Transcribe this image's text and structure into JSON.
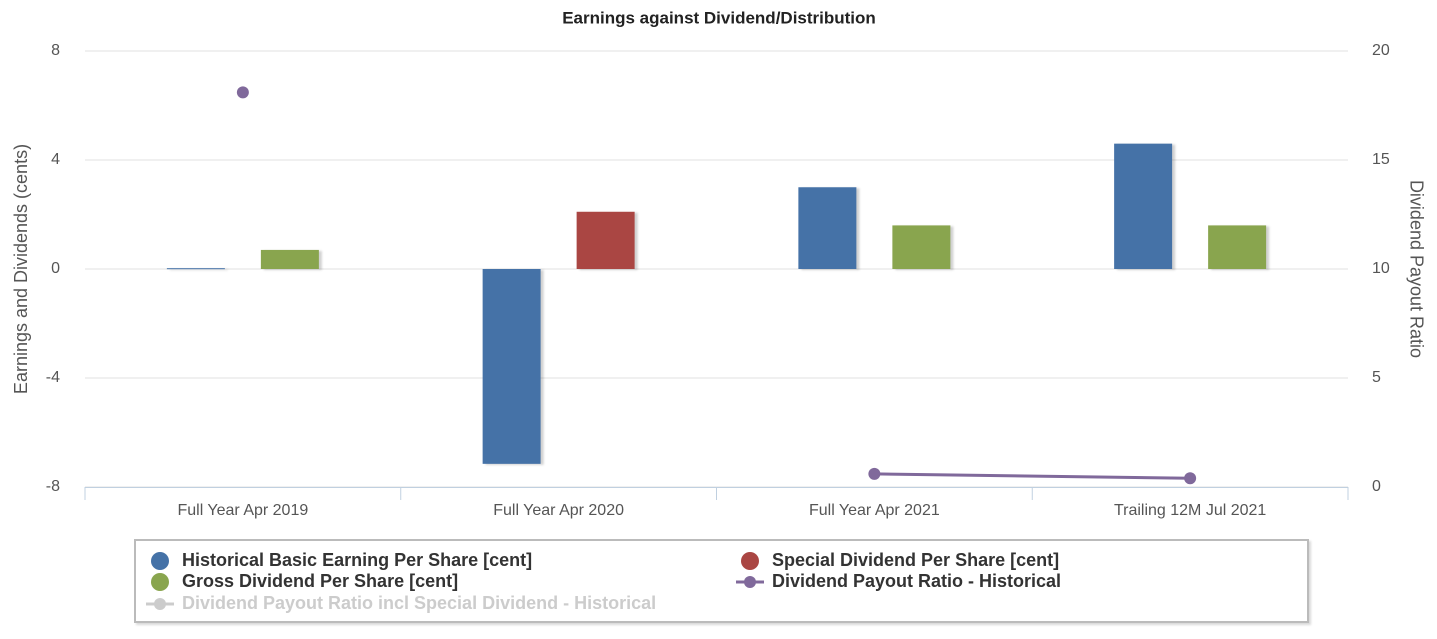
{
  "chart_data": {
    "type": "bar",
    "title": "Earnings against Dividend/Distribution",
    "categories": [
      "Full Year Apr 2019",
      "Full Year Apr 2020",
      "Full Year Apr 2021",
      "Trailing 12M Jul 2021"
    ],
    "ylabel": "Earnings and Dividends (cents)",
    "y2label": "Dividend Payout Ratio",
    "ylim": [
      -8,
      8
    ],
    "yticks": [
      -8,
      -4,
      0,
      4,
      8
    ],
    "y2lim": [
      0,
      20
    ],
    "y2ticks": [
      0,
      5,
      10,
      15,
      20
    ],
    "grid": true,
    "legend": "bottom",
    "series": [
      {
        "name": "Historical Basic Earning Per Share [cent]",
        "type": "bar",
        "color": "#4572a7",
        "values": [
          0.03,
          -7.15,
          3.0,
          4.6
        ]
      },
      {
        "name": "Special Dividend Per Share [cent]",
        "type": "bar",
        "color": "#aa4643",
        "values": [
          null,
          2.1,
          null,
          null
        ]
      },
      {
        "name": "Gross Dividend Per Share [cent]",
        "type": "bar",
        "color": "#89a54e",
        "values": [
          0.7,
          null,
          1.6,
          1.6
        ]
      },
      {
        "name": "Dividend Payout Ratio - Historical",
        "type": "line",
        "axis": "y2",
        "color": "#80699b",
        "values": [
          18.1,
          null,
          0.6,
          0.4
        ]
      },
      {
        "name": "Dividend Payout Ratio incl Special Dividend - Historical",
        "type": "line",
        "axis": "y2",
        "color": "#cccccc",
        "visible": false,
        "values": [
          null,
          null,
          null,
          null
        ]
      }
    ]
  }
}
